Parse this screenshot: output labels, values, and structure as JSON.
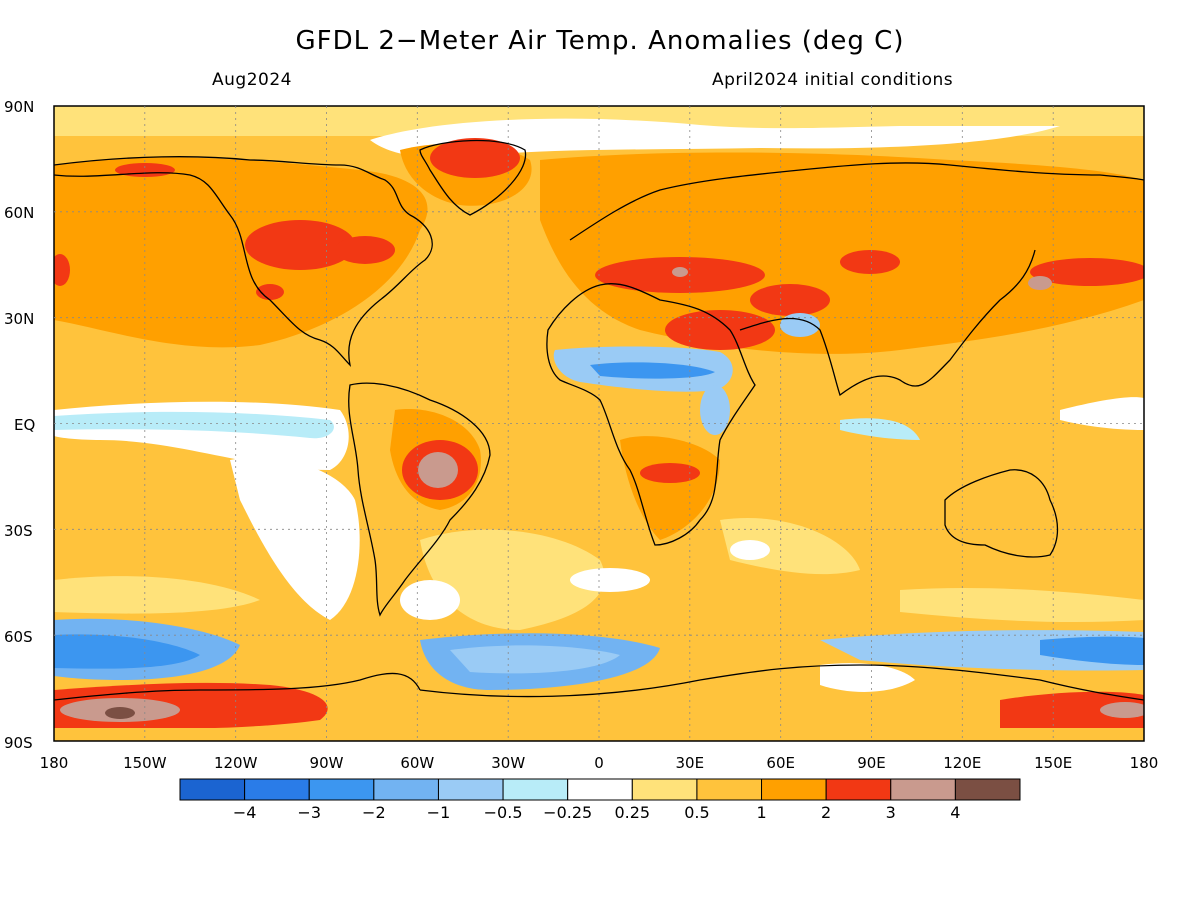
{
  "title": "GFDL 2−Meter Air Temp. Anomalies (deg C)",
  "subtitle_left": "Aug2024",
  "subtitle_right": "April2024 initial conditions",
  "lat_labels": [
    "90N",
    "60N",
    "30N",
    "EQ",
    "30S",
    "60S",
    "90S"
  ],
  "lon_labels": [
    "180",
    "150W",
    "120W",
    "90W",
    "60W",
    "30W",
    "0",
    "30E",
    "60E",
    "90E",
    "120E",
    "150E",
    "180"
  ],
  "colorbar": {
    "colors": [
      "#1b64d1",
      "#2a7ce8",
      "#3c96f0",
      "#72b3f2",
      "#9acbf5",
      "#b8ecf8",
      "#ffffff",
      "#ffe27a",
      "#ffc33c",
      "#ffa000",
      "#f23814",
      "#c99a8e",
      "#7b4f43"
    ],
    "labels": [
      "−4",
      "−3",
      "−2",
      "−1",
      "−0.5",
      "−0.25",
      "0.25",
      "0.5",
      "1",
      "2",
      "3",
      "4"
    ]
  }
}
